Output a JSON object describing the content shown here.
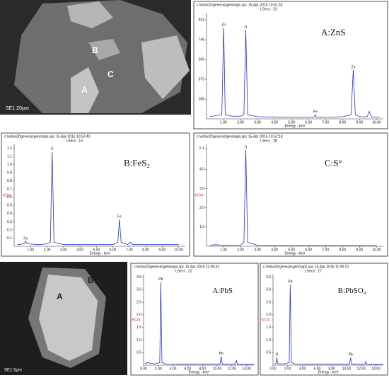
{
  "images": [
    {
      "scale": "SE1   20µm",
      "labels": [
        "A",
        "B",
        "C"
      ]
    },
    {
      "scale": "SE1   5µm",
      "labels": [
        "A",
        "B"
      ]
    }
  ],
  "chart_data": [
    {
      "type": "line",
      "title": "A:ZnS",
      "header": [
        "c:\\edax32\\genesis\\genmaps.spc  15-Apr-2016 10:51:33",
        "LSecs : 23"
      ],
      "xlabel": "Energy - keV",
      "color": "#2233cc",
      "x": [
        0.2,
        0.5,
        0.9,
        1.01,
        1.1,
        1.5,
        2.0,
        2.2,
        2.31,
        2.42,
        3.0,
        4.0,
        5.0,
        6.0,
        6.35,
        6.4,
        6.45,
        7.0,
        8.0,
        8.5,
        8.63,
        8.75,
        9.0,
        9.45,
        9.57,
        9.7,
        10.2
      ],
      "values": [
        20,
        30,
        40,
        860,
        40,
        25,
        25,
        40,
        840,
        40,
        20,
        18,
        15,
        15,
        18,
        40,
        18,
        15,
        20,
        40,
        460,
        40,
        20,
        20,
        70,
        20,
        15
      ],
      "xlim": [
        0,
        10.4
      ],
      "ylim": [
        0,
        1000
      ],
      "xticks": [
        {
          "value": 1,
          "label": "1.00"
        },
        {
          "value": 2,
          "label": "2.00"
        },
        {
          "value": 3,
          "label": "3.00"
        },
        {
          "value": 4,
          "label": "4.00"
        },
        {
          "value": 5,
          "label": "5.00"
        },
        {
          "value": 6,
          "label": "6.00"
        },
        {
          "value": 7,
          "label": "7.00"
        },
        {
          "value": 8,
          "label": "8.00"
        },
        {
          "value": 9,
          "label": "9.00"
        },
        {
          "value": 10,
          "label": "10.00"
        }
      ],
      "yticks": [
        186,
        373,
        560,
        746,
        933
      ],
      "annotations": [
        {
          "text": "Zn",
          "x": 1.01,
          "y": 860
        },
        {
          "text": "S",
          "x": 2.31,
          "y": 840
        },
        {
          "text": "Fe",
          "x": 6.4,
          "y": 40
        },
        {
          "text": "Zn",
          "x": 8.63,
          "y": 460
        }
      ]
    },
    {
      "type": "line",
      "title": "B:FeS₂",
      "header": [
        "c:\\edax32\\genesis\\genmaps.spc  15-Apr-2016 10:50:40",
        "LSecs : 15"
      ],
      "xlabel": "Energy - keV",
      "ylabel": "KCnt",
      "color": "#2233cc",
      "x": [
        0.2,
        0.6,
        0.7,
        0.8,
        1.5,
        2.0,
        2.2,
        2.31,
        2.42,
        3.0,
        4.0,
        5.0,
        6.0,
        6.3,
        6.4,
        6.5,
        6.9,
        7.06,
        7.2,
        8.0,
        9.0,
        10.0
      ],
      "values": [
        0.02,
        0.03,
        0.06,
        0.03,
        0.02,
        0.03,
        0.05,
        1.16,
        0.05,
        0.02,
        0.02,
        0.02,
        0.02,
        0.05,
        0.33,
        0.05,
        0.02,
        0.05,
        0.02,
        0.02,
        0.02,
        0.02
      ],
      "xlim": [
        0,
        10.4
      ],
      "ylim": [
        0,
        1.25
      ],
      "xticks": [
        {
          "value": 1,
          "label": "1.00"
        },
        {
          "value": 2,
          "label": "2.00"
        },
        {
          "value": 3,
          "label": "3.00"
        },
        {
          "value": 4,
          "label": "4.00"
        },
        {
          "value": 5,
          "label": "5.00"
        },
        {
          "value": 6,
          "label": "6.00"
        },
        {
          "value": 7,
          "label": "7.00"
        },
        {
          "value": 8,
          "label": "8.00"
        },
        {
          "value": 9,
          "label": "9.00"
        },
        {
          "value": 10,
          "label": "10.00"
        }
      ],
      "yticks": [
        0.1,
        0.2,
        0.3,
        0.4,
        0.5,
        0.6,
        0.7,
        0.8,
        0.9,
        {
          "value": 1,
          "label": "1.0"
        },
        1.1,
        1.2
      ],
      "annotations": [
        {
          "text": "Fe",
          "x": 0.7,
          "y": 0.06
        },
        {
          "text": "S",
          "x": 2.31,
          "y": 1.16
        },
        {
          "text": "Fe",
          "x": 6.4,
          "y": 0.33
        }
      ]
    },
    {
      "type": "line",
      "title": "C:S°",
      "header": [
        "c:\\edax32\\genesis\\genmaps.spc  15-Apr-2016 10:52:18",
        "LSecs : 28"
      ],
      "xlabel": "Energy - keV",
      "ylabel": "KCnt",
      "color": "#2233cc",
      "x": [
        0.2,
        0.5,
        1.0,
        2.0,
        2.2,
        2.31,
        2.42,
        3.0,
        4.0,
        5.0,
        6.0,
        7.0,
        8.0,
        9.0,
        10.0
      ],
      "values": [
        0.05,
        0.08,
        0.05,
        0.05,
        0.2,
        5.0,
        0.2,
        0.05,
        0.04,
        0.04,
        0.04,
        0.04,
        0.04,
        0.04,
        0.04
      ],
      "xlim": [
        0,
        10.4
      ],
      "ylim": [
        0,
        5.3
      ],
      "xticks": [
        {
          "value": 1,
          "label": "1.00"
        },
        {
          "value": 2,
          "label": "2.00"
        },
        {
          "value": 3,
          "label": "3.00"
        },
        {
          "value": 4,
          "label": "4.00"
        },
        {
          "value": 5,
          "label": "5.00"
        },
        {
          "value": 6,
          "label": "6.00"
        },
        {
          "value": 7,
          "label": "7.00"
        },
        {
          "value": 8,
          "label": "8.00"
        },
        {
          "value": 9,
          "label": "9.00"
        },
        {
          "value": 10,
          "label": "10.00"
        }
      ],
      "yticks": [
        {
          "value": 1,
          "label": "1.0"
        },
        {
          "value": 2,
          "label": "2.0"
        },
        {
          "value": 3,
          "label": "3.0"
        },
        {
          "value": 4,
          "label": "4.0"
        },
        5.1
      ],
      "annotations": [
        {
          "text": "S",
          "x": 2.31,
          "y": 5.0
        }
      ]
    },
    {
      "type": "line",
      "title": "A:PbS",
      "header": [
        "c:\\edax32\\genesis\\genmaps.spc  15-Apr-2016 11:08:33",
        "LSecs : 22"
      ],
      "xlabel": "Energy - keV",
      "ylabel": "KCnt",
      "color": "#2233cc",
      "x": [
        0.2,
        0.5,
        1.5,
        2.2,
        2.34,
        2.5,
        3.0,
        5,
        7,
        9,
        10.4,
        10.55,
        10.7,
        12.5,
        12.61,
        12.75,
        14,
        15
      ],
      "values": [
        0.05,
        0.1,
        0.05,
        0.1,
        3.3,
        0.1,
        0.05,
        0.04,
        0.04,
        0.04,
        0.04,
        0.35,
        0.04,
        0.04,
        0.2,
        0.04,
        0.03,
        0.03
      ],
      "xlim": [
        0,
        15
      ],
      "ylim": [
        0,
        3.6
      ],
      "xticks": [
        {
          "value": 0,
          "label": "0.00"
        },
        {
          "value": 2,
          "label": "2.00"
        },
        {
          "value": 4,
          "label": "4.00"
        },
        {
          "value": 6,
          "label": "6.00"
        },
        {
          "value": 8,
          "label": "8.00"
        },
        {
          "value": 10,
          "label": "10.00"
        },
        {
          "value": 12,
          "label": "12.00"
        },
        {
          "value": 14,
          "label": "14.00"
        }
      ],
      "yticks": [
        0.5,
        {
          "value": 1,
          "label": "1.0"
        },
        1.5,
        {
          "value": 2,
          "label": "2.0"
        },
        2.5,
        {
          "value": 3,
          "label": "3.0"
        },
        3.5
      ],
      "annotations": [
        {
          "text": "Pb",
          "x": 2.34,
          "y": 3.3
        },
        {
          "text": "Pb",
          "x": 10.55,
          "y": 0.35
        }
      ]
    },
    {
      "type": "line",
      "title": "B:PbSO₄",
      "header": [
        "c:\\edax32\\genesis\\genmaps.spc  15-Apr-2016 11:09:10",
        "LSecs : 27"
      ],
      "xlabel": "Energy - keV",
      "ylabel": "KCnt",
      "color": "#2233cc",
      "x": [
        0.2,
        0.4,
        0.52,
        0.65,
        1.5,
        2.2,
        2.34,
        2.5,
        3.0,
        5,
        7,
        9,
        10.4,
        10.55,
        10.7,
        12.5,
        12.61,
        12.75,
        14,
        15
      ],
      "values": [
        0.05,
        0.06,
        0.3,
        0.06,
        0.05,
        0.1,
        3.2,
        0.1,
        0.05,
        0.04,
        0.04,
        0.04,
        0.04,
        0.3,
        0.04,
        0.04,
        0.15,
        0.04,
        0.03,
        0.03
      ],
      "xlim": [
        0,
        15
      ],
      "ylim": [
        0,
        3.6
      ],
      "xticks": [
        {
          "value": 0,
          "label": "0.00"
        },
        {
          "value": 2,
          "label": "2.00"
        },
        {
          "value": 4,
          "label": "4.00"
        },
        {
          "value": 6,
          "label": "6.00"
        },
        {
          "value": 8,
          "label": "8.00"
        },
        {
          "value": 10,
          "label": "10.00"
        },
        {
          "value": 12,
          "label": "12.00"
        },
        {
          "value": 14,
          "label": "14.00"
        }
      ],
      "yticks": [
        0.5,
        {
          "value": 1,
          "label": "1.0"
        },
        1.5,
        {
          "value": 2,
          "label": "2.0"
        },
        2.5,
        {
          "value": 3,
          "label": "3.0"
        },
        3.5
      ],
      "annotations": [
        {
          "text": "O",
          "x": 0.52,
          "y": 0.3
        },
        {
          "text": "Pb",
          "x": 2.34,
          "y": 3.2
        },
        {
          "text": "Pb",
          "x": 10.55,
          "y": 0.3
        }
      ]
    }
  ]
}
